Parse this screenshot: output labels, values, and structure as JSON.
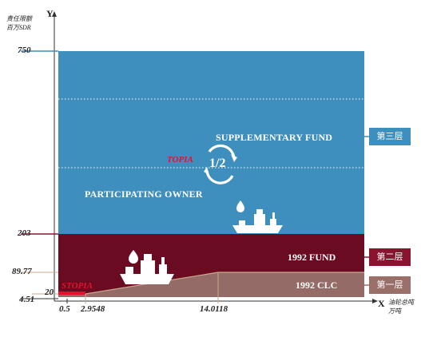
{
  "y_axis": {
    "letter": "Y",
    "title_line1": "责任限额",
    "title_line2": "百万SDR"
  },
  "x_axis": {
    "letter": "X",
    "title_line1": "油轮总吨",
    "title_line2": "万吨"
  },
  "y_ticks": [
    "750",
    "203",
    "89.77",
    "20",
    "4.51"
  ],
  "x_ticks": [
    "0.5",
    "2.9548",
    "14.0118"
  ],
  "tiers": [
    {
      "name": "SUPPLEMENTARY FUND",
      "tag": "第三层",
      "color": "#3e8fbd",
      "tag_color": "#3e8fbd"
    },
    {
      "name": "1992 FUND",
      "tag": "第二层",
      "color": "#6b0b22",
      "tag_color": "#8a1430"
    },
    {
      "name": "1992 CLC",
      "tag": "第一层",
      "color": "#946b66",
      "tag_color": "#9a6f6a"
    }
  ],
  "labels": {
    "topia": "TOPIA",
    "stopia": "STOPIA",
    "half": "1/2",
    "participating_owner": "PARTICIPATING OWNER"
  }
}
